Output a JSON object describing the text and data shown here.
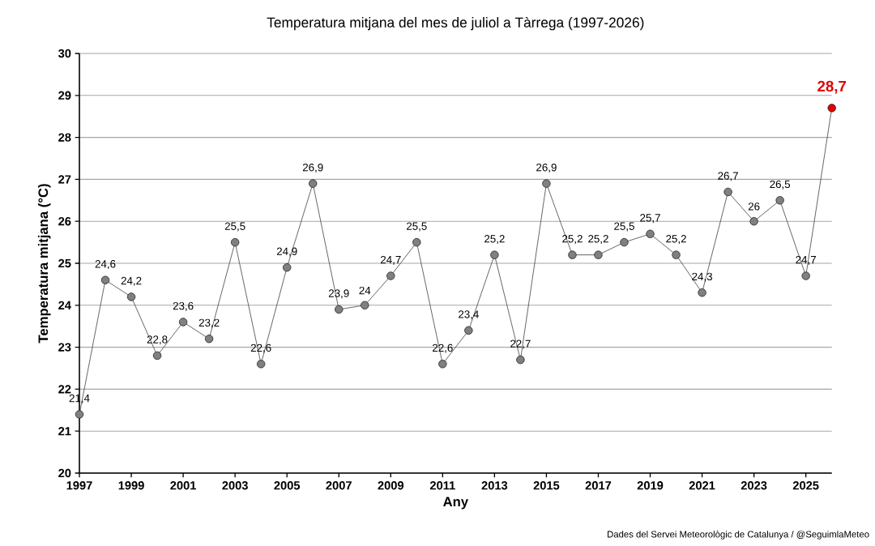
{
  "chart_data": {
    "type": "line",
    "title": "Temperatura mitjana del mes de juliol a Tàrrega (1997-2026)",
    "xlabel": "Any",
    "ylabel": "Temperatura mitjana (°C)",
    "annotations": [
      "Dades del Servei Meteorològic de Catalunya / @SeguimlaMeteo"
    ],
    "x": [
      1997,
      1998,
      1999,
      2000,
      2001,
      2002,
      2003,
      2004,
      2005,
      2006,
      2007,
      2008,
      2009,
      2010,
      2011,
      2012,
      2013,
      2014,
      2015,
      2016,
      2017,
      2018,
      2019,
      2020,
      2021,
      2022,
      2023,
      2024,
      2025,
      2026
    ],
    "series": [
      {
        "color": "#808080",
        "colors": [
          "#808080",
          "#808080",
          "#808080",
          "#808080",
          "#808080",
          "#808080",
          "#808080",
          "#808080",
          "#808080",
          "#808080",
          "#808080",
          "#808080",
          "#808080",
          "#808080",
          "#808080",
          "#808080",
          "#808080",
          "#808080",
          "#808080",
          "#808080",
          "#808080",
          "#808080",
          "#808080",
          "#808080",
          "#808080",
          "#808080",
          "#808080",
          "#808080",
          "#808080",
          "#e00000"
        ],
        "values": [
          21.4,
          24.6,
          24.2,
          22.8,
          23.6,
          23.2,
          25.5,
          22.6,
          24.9,
          26.9,
          23.9,
          24,
          24.7,
          25.5,
          22.6,
          23.4,
          25.2,
          22.7,
          26.9,
          25.2,
          25.2,
          25.5,
          25.7,
          25.2,
          24.3,
          26.7,
          26,
          26.5,
          24.7,
          28.7
        ],
        "value_labels": [
          "21,4",
          "24,6",
          "24,2",
          "22,8",
          "23,6",
          "23,2",
          "25,5",
          "22,6",
          "24,9",
          "26,9",
          "23,9",
          "24",
          "24,7",
          "25,5",
          "22,6",
          "23,4",
          "25,2",
          "22,7",
          "26,9",
          "25,2",
          "25,2",
          "25,5",
          "25,7",
          "25,2",
          "24,3",
          "26,7",
          "26",
          "26,5",
          "24,7",
          "28,7"
        ]
      }
    ],
    "xlim": [
      1997,
      2026
    ],
    "ylim": [
      20,
      30
    ],
    "xticks": [
      1997,
      1999,
      2001,
      2003,
      2005,
      2007,
      2009,
      2011,
      2013,
      2015,
      2017,
      2019,
      2021,
      2023,
      2025
    ],
    "yticks": [
      20,
      21,
      22,
      23,
      24,
      25,
      26,
      27,
      28,
      29,
      30
    ],
    "grid": "y",
    "marker": "circle",
    "line_style": "solid"
  }
}
